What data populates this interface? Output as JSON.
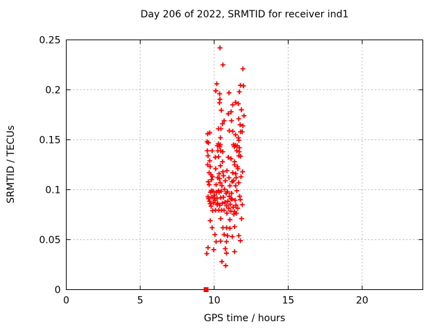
{
  "colors": {
    "background": "#ffffff",
    "marker": "#ff0000",
    "axis": "#000000",
    "grid": "#b4b4b4",
    "text": "#000000"
  },
  "chart_data": {
    "type": "scatter",
    "title": "Day 206 of 2022, SRMTID for receiver ind1",
    "xlabel": "GPS time / hours",
    "ylabel": "SRMTID / TECUs",
    "xlim": [
      0,
      24.1
    ],
    "ylim": [
      0,
      0.25
    ],
    "xticks": [
      0,
      5,
      10,
      15,
      20
    ],
    "xtick_labels": [
      "0",
      "5",
      "10",
      "15",
      "20"
    ],
    "yticks": [
      0,
      0.05,
      0.1,
      0.15,
      0.2,
      0.25
    ],
    "ytick_labels": [
      "0",
      "0.05",
      "0.1",
      "0.15",
      "0.2",
      "0.25"
    ],
    "grid": "dashed",
    "legend": "none",
    "series": [
      {
        "name": "srmtid-values",
        "marker": "plus",
        "color": "#ff0000",
        "points": [
          [
            10.39,
            0.242
          ],
          [
            10.59,
            0.225
          ],
          [
            11.94,
            0.221
          ],
          [
            10.17,
            0.206
          ],
          [
            11.77,
            0.2045
          ],
          [
            11.98,
            0.204
          ],
          [
            10.11,
            0.199
          ],
          [
            11.0,
            0.197
          ],
          [
            11.7,
            0.198
          ],
          [
            10.37,
            0.196
          ],
          [
            10.39,
            0.1905
          ],
          [
            11.45,
            0.1875
          ],
          [
            10.36,
            0.187
          ],
          [
            11.63,
            0.186
          ],
          [
            11.25,
            0.185
          ],
          [
            10.48,
            0.1795
          ],
          [
            11.84,
            0.18
          ],
          [
            11.14,
            0.178
          ],
          [
            10.95,
            0.176
          ],
          [
            12.01,
            0.174
          ],
          [
            11.66,
            0.171
          ],
          [
            10.67,
            0.169
          ],
          [
            11.17,
            0.169
          ],
          [
            10.56,
            0.166
          ],
          [
            11.75,
            0.165
          ],
          [
            11.94,
            0.164
          ],
          [
            10.28,
            0.161
          ],
          [
            10.45,
            0.161
          ],
          [
            11.02,
            0.159
          ],
          [
            11.25,
            0.1585
          ],
          [
            11.78,
            0.158
          ],
          [
            11.89,
            0.158
          ],
          [
            9.7,
            0.157
          ],
          [
            9.56,
            0.156
          ],
          [
            11.44,
            0.155
          ],
          [
            10.42,
            0.152
          ],
          [
            11.63,
            0.152
          ],
          [
            11.67,
            0.1495
          ],
          [
            9.52,
            0.148
          ],
          [
            9.61,
            0.147
          ],
          [
            10.28,
            0.146
          ],
          [
            10.41,
            0.145
          ],
          [
            11.3,
            0.145
          ],
          [
            11.42,
            0.1445
          ],
          [
            10.22,
            0.144
          ],
          [
            11.55,
            0.144
          ],
          [
            10.37,
            0.143
          ],
          [
            11.36,
            0.143
          ],
          [
            11.7,
            0.142
          ],
          [
            9.53,
            0.139
          ],
          [
            9.86,
            0.139
          ],
          [
            10.25,
            0.139
          ],
          [
            10.44,
            0.139
          ],
          [
            11.53,
            0.139
          ],
          [
            10.58,
            0.138
          ],
          [
            11.69,
            0.138
          ],
          [
            9.58,
            0.134
          ],
          [
            11.67,
            0.134
          ],
          [
            10.29,
            0.133
          ],
          [
            11.78,
            0.1335
          ],
          [
            10.08,
            0.1325
          ],
          [
            10.95,
            0.1325
          ],
          [
            11.14,
            0.131
          ],
          [
            9.7,
            0.129
          ],
          [
            10.56,
            0.128
          ],
          [
            11.38,
            0.128
          ],
          [
            9.56,
            0.125
          ],
          [
            10.42,
            0.124
          ],
          [
            11.38,
            0.125
          ],
          [
            9.73,
            0.123
          ],
          [
            11.57,
            0.123
          ],
          [
            10.1,
            0.121
          ],
          [
            11.6,
            0.121
          ],
          [
            9.66,
            0.117
          ],
          [
            11.25,
            0.117
          ],
          [
            10.59,
            0.118
          ],
          [
            10.33,
            0.116
          ],
          [
            11.45,
            0.116
          ],
          [
            9.78,
            0.115
          ],
          [
            11.92,
            0.118
          ],
          [
            9.88,
            0.113
          ],
          [
            11.81,
            0.113
          ],
          [
            10.63,
            0.114
          ],
          [
            10.24,
            0.112
          ],
          [
            11.0,
            0.112
          ],
          [
            11.48,
            0.112
          ],
          [
            10.36,
            0.111
          ],
          [
            10.86,
            0.119
          ],
          [
            9.81,
            0.11
          ],
          [
            10.75,
            0.109
          ],
          [
            11.3,
            0.109
          ],
          [
            9.6,
            0.108
          ],
          [
            11.21,
            0.108
          ],
          [
            11.66,
            0.107
          ],
          [
            10.4,
            0.107
          ],
          [
            9.66,
            0.105
          ],
          [
            10.13,
            0.105
          ],
          [
            10.52,
            0.104
          ],
          [
            11.06,
            0.104
          ],
          [
            11.45,
            0.104
          ],
          [
            10.7,
            0.1005
          ],
          [
            9.81,
            0.099
          ],
          [
            10.28,
            0.099
          ],
          [
            11.53,
            0.099
          ],
          [
            10.9,
            0.098
          ],
          [
            10.16,
            0.0975
          ],
          [
            9.75,
            0.0975
          ],
          [
            10.33,
            0.0975
          ],
          [
            9.92,
            0.0985
          ],
          [
            10.47,
            0.0985
          ],
          [
            10.81,
            0.0965
          ],
          [
            11.17,
            0.0965
          ],
          [
            10.02,
            0.0945
          ],
          [
            11.02,
            0.0935
          ],
          [
            11.72,
            0.0935
          ],
          [
            9.58,
            0.093
          ],
          [
            10.62,
            0.0925
          ],
          [
            9.84,
            0.0925
          ],
          [
            9.97,
            0.092
          ],
          [
            10.44,
            0.092
          ],
          [
            10.19,
            0.0915
          ],
          [
            11.14,
            0.091
          ],
          [
            9.62,
            0.091
          ],
          [
            11.2,
            0.0905
          ],
          [
            11.77,
            0.09
          ],
          [
            10.06,
            0.0895
          ],
          [
            11.41,
            0.0895
          ],
          [
            9.69,
            0.0885
          ],
          [
            10.92,
            0.0885
          ],
          [
            10.73,
            0.0875
          ],
          [
            9.95,
            0.087
          ],
          [
            10.23,
            0.0865
          ],
          [
            10.55,
            0.0865
          ],
          [
            9.73,
            0.086
          ],
          [
            11.08,
            0.0855
          ],
          [
            10.2,
            0.085
          ],
          [
            11.9,
            0.085
          ],
          [
            11.47,
            0.0845
          ],
          [
            10.38,
            0.0845
          ],
          [
            10.83,
            0.084
          ],
          [
            9.79,
            0.0835
          ],
          [
            11.28,
            0.0825
          ],
          [
            10.97,
            0.0815
          ],
          [
            11.59,
            0.0815
          ],
          [
            9.89,
            0.079
          ],
          [
            10.09,
            0.0795
          ],
          [
            10.31,
            0.0795
          ],
          [
            10.5,
            0.0795
          ],
          [
            10.66,
            0.0795
          ],
          [
            11.12,
            0.0785
          ],
          [
            11.38,
            0.078
          ],
          [
            10.86,
            0.0765
          ],
          [
            11.5,
            0.0765
          ],
          [
            11.33,
            0.0755
          ],
          [
            10.44,
            0.071
          ],
          [
            11.85,
            0.071
          ],
          [
            11.06,
            0.07
          ],
          [
            9.73,
            0.069
          ],
          [
            9.86,
            0.062
          ],
          [
            10.59,
            0.062
          ],
          [
            10.83,
            0.062
          ],
          [
            11.06,
            0.0615
          ],
          [
            11.38,
            0.063
          ],
          [
            10.05,
            0.055
          ],
          [
            10.67,
            0.055
          ],
          [
            10.9,
            0.054
          ],
          [
            11.22,
            0.053
          ],
          [
            11.66,
            0.054
          ],
          [
            10.13,
            0.048
          ],
          [
            10.44,
            0.0485
          ],
          [
            10.83,
            0.048
          ],
          [
            11.77,
            0.049
          ],
          [
            9.58,
            0.042
          ],
          [
            10.75,
            0.041
          ],
          [
            9.97,
            0.04
          ],
          [
            9.5,
            0.036
          ],
          [
            10.83,
            0.0365
          ],
          [
            11.38,
            0.038
          ],
          [
            10.52,
            0.028
          ],
          [
            10.78,
            0.024
          ]
        ]
      },
      {
        "name": "zero-baseline-point",
        "marker": "filled-square",
        "color": "#ff0000",
        "points": [
          [
            9.45,
            0
          ]
        ]
      }
    ]
  }
}
